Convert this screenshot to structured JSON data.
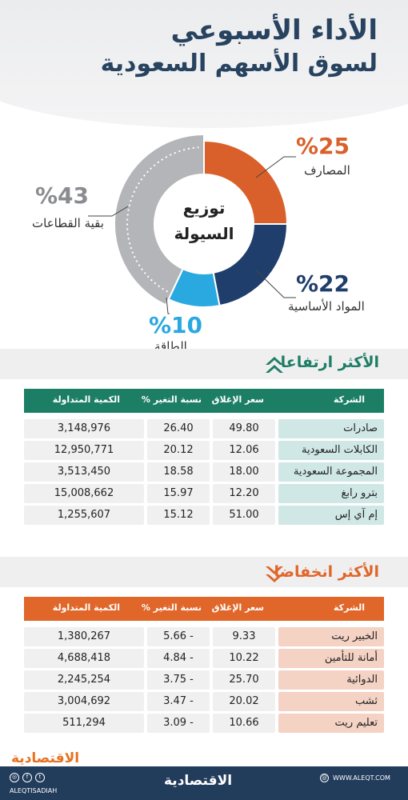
{
  "header": {
    "title_line1": "الأداء الأسبوعي",
    "title_line2": "لسوق الأسهم السعودية"
  },
  "chart_data": {
    "type": "pie",
    "title": "توزيع السيولة",
    "center_label_line1": "توزيع",
    "center_label_line2": "السيولة",
    "slices": [
      {
        "label": "المصارف",
        "value": 25,
        "pct_text": "%25",
        "color": "#d9602a"
      },
      {
        "label": "المواد الأساسية",
        "value": 22,
        "pct_text": "%22",
        "color": "#1f3e6b"
      },
      {
        "label": "الطاقة",
        "value": 10,
        "pct_text": "%10",
        "color": "#2aa8e0"
      },
      {
        "label": "بقية القطاعات",
        "value": 43,
        "pct_text": "%43",
        "color": "#b3b5b9"
      }
    ]
  },
  "gainers": {
    "title": "الأكثر ارتفاعا",
    "header_color": "#1d7e66",
    "name_bg": "#cfe7e5",
    "columns": [
      "الشركة",
      "سعر الإغلاق",
      "نسبة التغير %",
      "الكمية المتداولة"
    ],
    "rows": [
      {
        "name": "صادرات",
        "close": "49.80",
        "change": "26.40",
        "volume": "3,148,976"
      },
      {
        "name": "الكابلات السعودية",
        "close": "12.06",
        "change": "20.12",
        "volume": "12,950,771"
      },
      {
        "name": "المجموعة السعودية",
        "close": "18.00",
        "change": "18.58",
        "volume": "3,513,450"
      },
      {
        "name": "بترو رابغ",
        "close": "12.20",
        "change": "15.97",
        "volume": "15,008,662"
      },
      {
        "name": "إم آي إس",
        "close": "51.00",
        "change": "15.12",
        "volume": "1,255,607"
      }
    ]
  },
  "losers": {
    "title": "الأكثر انخفاضا",
    "header_color": "#e0662a",
    "name_bg": "#f4d2c4",
    "columns": [
      "الشركة",
      "سعر الإغلاق",
      "نسبة التغير %",
      "الكمية المتداولة"
    ],
    "rows": [
      {
        "name": "الخبير ريت",
        "close": "9.33",
        "change": "5.66 -",
        "volume": "1,380,267"
      },
      {
        "name": "أمانة للتأمين",
        "close": "10.22",
        "change": "4.84 -",
        "volume": "4,688,418"
      },
      {
        "name": "الدوائية",
        "close": "25.70",
        "change": "3.75 -",
        "volume": "2,245,254"
      },
      {
        "name": "ثشب",
        "close": "20.02",
        "change": "3.47 -",
        "volume": "3,004,692"
      },
      {
        "name": "تعليم ريت",
        "close": "10.66",
        "change": "3.09 -",
        "volume": "511,294"
      }
    ]
  },
  "footer": {
    "logo_small": "الاقتصادية",
    "brand": "الاقتصادية",
    "handle": "ALEQTISADIAH",
    "website": "WWW.ALEQT.COM"
  },
  "icons": [
    "arrow-up-icon",
    "arrow-down-icon",
    "instagram-icon",
    "facebook-icon",
    "twitter-icon",
    "globe-icon"
  ]
}
